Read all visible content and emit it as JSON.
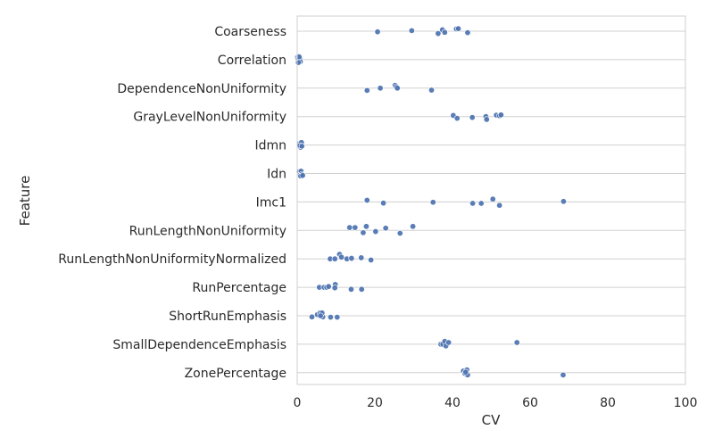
{
  "chart_data": {
    "type": "scatter",
    "xlabel": "CV",
    "ylabel": "Feature",
    "xlim": [
      0,
      100
    ],
    "xticks": [
      0,
      20,
      40,
      60,
      80,
      100
    ],
    "grid": true,
    "legend": "none",
    "color": "#4c72b0",
    "categories": [
      "Coarseness",
      "Correlation",
      "DependenceNonUniformity",
      "GrayLevelNonUniformity",
      "Idmn",
      "Idn",
      "Imc1",
      "RunLengthNonUniformity",
      "RunLengthNonUniformityNormalized",
      "RunPercentage",
      "ShortRunEmphasis",
      "SmallDependenceEmphasis",
      "ZonePercentage"
    ],
    "series": [
      {
        "category": "Coarseness",
        "x": [
          20.7,
          29.5,
          36.3,
          37.4,
          38.0,
          41.0,
          41.5,
          43.9
        ],
        "y": [
          0.02,
          -0.02,
          0.08,
          -0.05,
          0.04,
          -0.08,
          -0.09,
          0.05
        ]
      },
      {
        "category": "Correlation",
        "x": [
          0.1,
          0.2,
          0.3,
          0.5,
          0.7,
          0.8,
          0.3,
          0.5
        ],
        "y": [
          -0.08,
          0.08,
          -0.02,
          0.05,
          -0.03,
          0.07,
          0.1,
          -0.1
        ]
      },
      {
        "category": "DependenceNonUniformity",
        "x": [
          18.0,
          21.4,
          25.2,
          25.5,
          25.8,
          34.6
        ],
        "y": [
          0.08,
          0.0,
          -0.1,
          -0.05,
          0.0,
          0.07
        ]
      },
      {
        "category": "GrayLevelNonUniformity",
        "x": [
          40.2,
          41.2,
          45.1,
          48.6,
          48.8,
          51.3,
          52.1,
          52.5
        ],
        "y": [
          -0.04,
          0.06,
          0.03,
          0.0,
          0.1,
          -0.05,
          -0.03,
          -0.06
        ]
      },
      {
        "category": "Idmn",
        "x": [
          0.6,
          0.9,
          1.1,
          0.7,
          1.2
        ],
        "y": [
          -0.05,
          0.08,
          -0.09,
          0.02,
          0.04
        ]
      },
      {
        "category": "Idn",
        "x": [
          0.5,
          0.8,
          1.0,
          1.2,
          0.9,
          1.4
        ],
        "y": [
          -0.06,
          0.05,
          -0.08,
          0.03,
          0.09,
          0.07
        ]
      },
      {
        "category": "Imc1",
        "x": [
          18.0,
          22.2,
          35.0,
          45.2,
          47.4,
          50.4,
          52.1,
          68.6
        ],
        "y": [
          -0.06,
          0.04,
          0.01,
          0.05,
          0.05,
          -0.1,
          0.12,
          -0.02
        ]
      },
      {
        "category": "RunLengthNonUniformity",
        "x": [
          13.5,
          14.9,
          17.0,
          17.8,
          20.2,
          22.8,
          26.5,
          29.8
        ],
        "y": [
          -0.1,
          -0.1,
          0.08,
          -0.14,
          0.04,
          -0.08,
          0.1,
          -0.14
        ]
      },
      {
        "category": "RunLengthNonUniformityNormalized",
        "x": [
          8.5,
          9.7,
          10.9,
          11.4,
          12.8,
          14.0,
          16.5,
          19.0
        ],
        "y": [
          0.0,
          0.0,
          -0.16,
          -0.06,
          0.0,
          -0.02,
          -0.04,
          0.04
        ]
      },
      {
        "category": "RunPercentage",
        "x": [
          5.7,
          6.9,
          7.6,
          8.1,
          9.8,
          9.7,
          13.9,
          16.6
        ],
        "y": [
          0.0,
          0.0,
          0.0,
          -0.03,
          -0.1,
          0.02,
          0.07,
          0.07
        ]
      },
      {
        "category": "ShortRunEmphasis",
        "x": [
          3.8,
          5.2,
          5.9,
          6.6,
          6.4,
          8.6,
          10.3,
          6.0
        ],
        "y": [
          0.04,
          -0.04,
          -0.1,
          0.04,
          -0.1,
          0.05,
          0.05,
          0.0
        ]
      },
      {
        "category": "SmallDependenceEmphasis",
        "x": [
          37.0,
          37.5,
          38.0,
          38.3,
          39.0,
          56.6
        ],
        "y": [
          0.0,
          0.0,
          -0.1,
          0.06,
          -0.06,
          -0.06
        ]
      },
      {
        "category": "ZonePercentage",
        "x": [
          42.8,
          43.2,
          43.7,
          43.9,
          43.4,
          68.5
        ],
        "y": [
          -0.06,
          0.03,
          -0.1,
          0.08,
          -0.02,
          0.08
        ]
      }
    ]
  }
}
